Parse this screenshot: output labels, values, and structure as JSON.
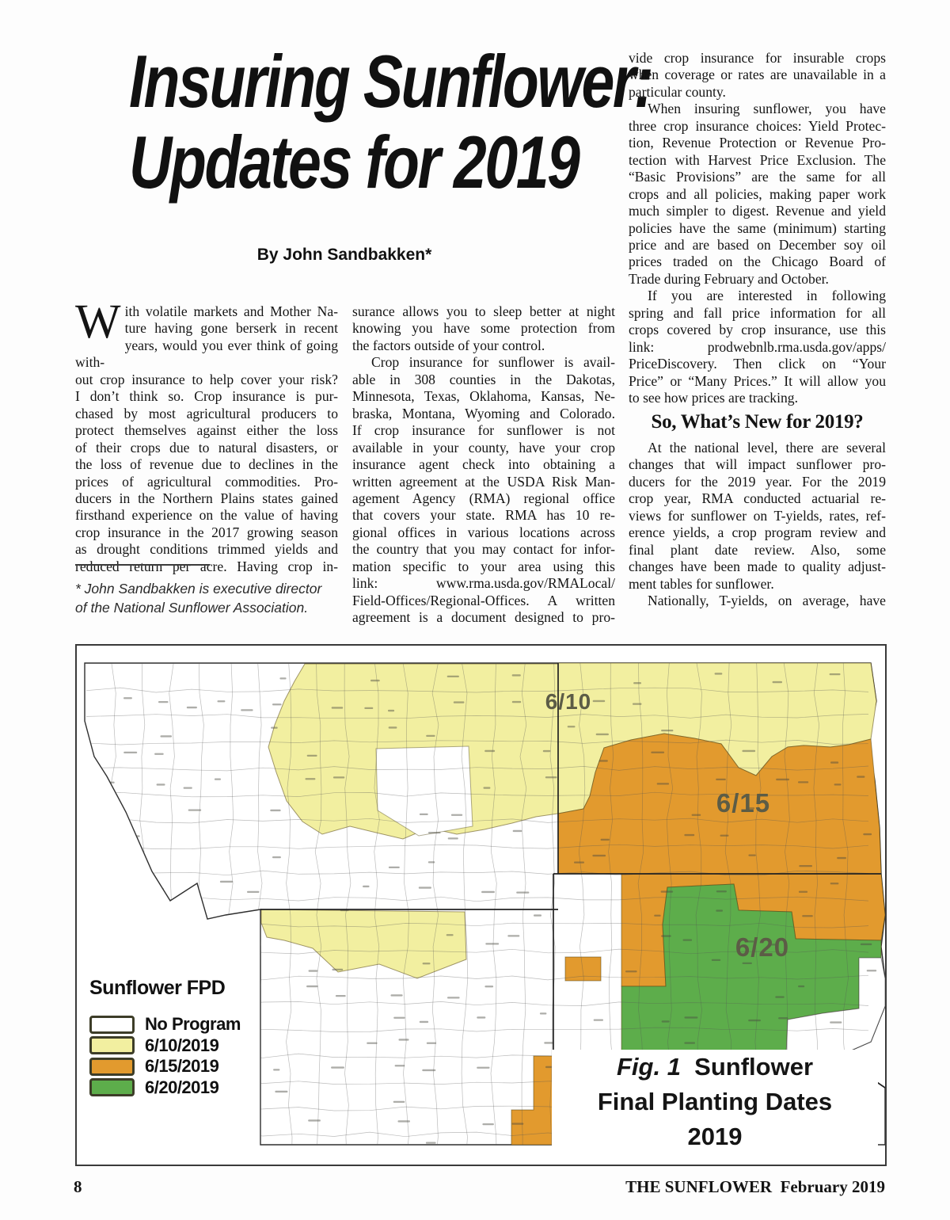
{
  "page": {
    "title_lines": [
      "Insuring Sunflower:",
      "Updates for 2019"
    ],
    "byline": "By John Sandbakken*",
    "footer": {
      "page_number": "8",
      "publication": "THE SUNFLOWER  February 2019"
    }
  },
  "article": {
    "col1": {
      "drop_cap": "W",
      "blocks": [
        {
          "type": "para",
          "indent": false,
          "endsPara": false,
          "lines": [
            "ith volatile markets and Mother Na-",
            "ture having gone berserk in recent",
            "years, would you ever think of going with-",
            "out crop insurance to help cover your risk?",
            "I don’t think so.  Crop insurance is pur-",
            "chased by most agricultural producers to",
            "protect themselves against either the loss",
            "of their crops due to natural disasters, or",
            "the loss of revenue due to declines in the",
            "prices of agricultural commodities.  Pro-",
            "ducers in the Northern Plains states gained",
            "firsthand experience on the value of having",
            "crop insurance in the 2017 growing season",
            "as drought conditions trimmed yields and",
            "reduced return per acre.  Having crop in-"
          ]
        }
      ],
      "footnote_lines": [
        "* John Sandbakken is executive director",
        "of the National Sunflower Association."
      ]
    },
    "col2": {
      "blocks": [
        {
          "type": "para",
          "indent": false,
          "endsPara": true,
          "lines": [
            "surance allows you to sleep better at night",
            "knowing you have some protection from",
            "the factors outside of your control."
          ]
        },
        {
          "type": "para",
          "indent": true,
          "endsPara": false,
          "lines": [
            "Crop insurance for sunflower is avail-",
            "able in 308 counties in the Dakotas,",
            "Minnesota, Texas, Oklahoma, Kansas, Ne-",
            "braska, Montana, Wyoming and Colorado.",
            "If crop insurance for sunflower is not",
            "available in your county, have your crop",
            "insurance agent check into obtaining a",
            "written agreement at the USDA Risk Man-",
            "agement Agency (RMA) regional office",
            "that covers your state.  RMA has 10 re-",
            "gional offices in various locations across",
            "the country that you may contact for infor-",
            "mation specific to your area using this",
            "link: www.rma.usda.gov/RMALocal/",
            "Field-Offices/Regional-Offices.  A written",
            "agreement is a document designed to pro-"
          ]
        }
      ]
    },
    "col3": {
      "blocks": [
        {
          "type": "para",
          "indent": false,
          "endsPara": true,
          "lines": [
            "vide crop insurance for insurable crops",
            "when coverage or rates are unavailable in a",
            "particular county."
          ]
        },
        {
          "type": "para",
          "indent": true,
          "endsPara": true,
          "lines": [
            "When insuring sunflower, you have",
            "three crop insurance choices: Yield Protec-",
            "tion, Revenue Protection or Revenue Pro-",
            "tection with Harvest Price Exclusion.  The",
            "“Basic Provisions” are the same for all",
            "crops and all policies, making paper work",
            "much simpler to digest.  Revenue and yield",
            "policies have the same (minimum) starting",
            "price and are based on December soy oil",
            "prices traded on the Chicago Board of",
            "Trade during February and October."
          ]
        },
        {
          "type": "para",
          "indent": true,
          "endsPara": true,
          "lines": [
            "If you are interested in following",
            "spring and fall price information for all",
            "crops covered by crop insurance, use this",
            "link: prodwebnlb.rma.usda.gov/apps/",
            "PriceDiscovery.  Then click on “Your",
            "Price” or “Many Prices.”  It will allow you",
            "to see how prices are tracking."
          ]
        },
        {
          "type": "heading",
          "text": "So, What’s New for 2019?"
        },
        {
          "type": "para",
          "indent": true,
          "endsPara": true,
          "lines": [
            "At the national level, there are several",
            "changes that will impact sunflower pro-",
            "ducers for the 2019 year.  For the 2019",
            "crop year, RMA conducted actuarial re-",
            "views for sunflower on T-yields, rates, ref-",
            "erence yields, a crop program review and",
            "final plant date review.  Also, some",
            "changes have been made to quality adjust-",
            "ment tables for sunflower."
          ]
        },
        {
          "type": "para",
          "indent": true,
          "endsPara": false,
          "lines": [
            "Nationally, T-yields, on average, have"
          ]
        }
      ]
    }
  },
  "figure": {
    "legend_title": "Sunflower FPD",
    "legend_items": [
      {
        "label": "No Program",
        "color": "#ffffff"
      },
      {
        "label": "6/10/2019",
        "color": "#f2efa0"
      },
      {
        "label": "6/15/2019",
        "color": "#e29a2e"
      },
      {
        "label": "6/20/2019",
        "color": "#5dad4b"
      }
    ],
    "colors": {
      "yellow": "#f2efa0",
      "orange": "#e29a2e",
      "green": "#5dad4b",
      "no_program": "#ffffff"
    },
    "region_labels": [
      {
        "text": "6/10"
      },
      {
        "text": "6/15"
      },
      {
        "text": "6/20"
      }
    ],
    "caption": {
      "fig": "Fig. 1",
      "line1_rest": "  Sunflower",
      "line2": "Final Planting Dates",
      "line3": "2019"
    }
  }
}
